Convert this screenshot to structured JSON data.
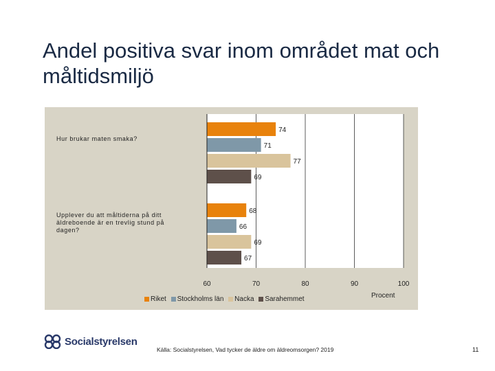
{
  "slide": {
    "title": "Andel positiva svar inom området mat och måltidsmiljö",
    "source": "Källa: Socialstyrelsen, Vad tycker de äldre om äldreomsorgen? 2019",
    "page_number": "11",
    "logo_text": "Socialstyrelsen"
  },
  "colors": {
    "Riket": "#e8820c",
    "Stockholms län": "#7f98a8",
    "Nacka": "#d9c49c",
    "Sarahemmet": "#5e504a"
  },
  "chart_data": {
    "type": "bar",
    "orientation": "horizontal",
    "categories": [
      "Hur brukar maten smaka?",
      "Upplever du att måltiderna på ditt äldreboende är en trevlig stund på dagen?"
    ],
    "series": [
      {
        "name": "Riket",
        "values": [
          74,
          68
        ]
      },
      {
        "name": "Stockholms län",
        "values": [
          71,
          66
        ]
      },
      {
        "name": "Nacka",
        "values": [
          77,
          69
        ]
      },
      {
        "name": "Sarahemmet",
        "values": [
          69,
          67
        ]
      }
    ],
    "xlim": [
      60,
      100
    ],
    "xticks": [
      60,
      70,
      80,
      90,
      100
    ],
    "xlabel": "Procent",
    "grid": true,
    "legend": "bottom"
  }
}
